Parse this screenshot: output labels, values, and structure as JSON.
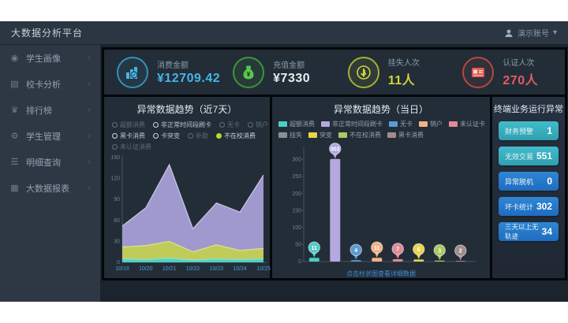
{
  "header": {
    "title": "大数据分析平台",
    "user": "演示账号",
    "caret": "▾"
  },
  "sidebar": {
    "chevron": "›",
    "items": [
      {
        "label": "学生画像",
        "icon": "person-icon",
        "glyph": "◉"
      },
      {
        "label": "校卡分析",
        "icon": "card-icon",
        "glyph": "▤"
      },
      {
        "label": "排行榜",
        "icon": "trophy-icon",
        "glyph": "♛"
      },
      {
        "label": "学生管理",
        "icon": "gear-icon",
        "glyph": "⚙"
      },
      {
        "label": "明细查询",
        "icon": "list-search-icon",
        "glyph": "☰"
      },
      {
        "label": "大数据报表",
        "icon": "report-icon",
        "glyph": "▦"
      }
    ]
  },
  "kpis": [
    {
      "label": "消费金额",
      "value": "¥12709.42",
      "color": "#45b6e6",
      "value_color": "#45b6e6",
      "icon": "bar-chart-icon"
    },
    {
      "label": "充值金额",
      "value": "¥7330",
      "color": "#57c84d",
      "value_color": "#e9eef3",
      "icon": "money-bag-icon"
    },
    {
      "label": "挂失人次",
      "value": "11人",
      "color": "#cdd53e",
      "value_color": "#cdd53e",
      "icon": "hand-click-icon"
    },
    {
      "label": "认证人次",
      "value": "270人",
      "color": "#e2574c",
      "value_color": "#e25b63",
      "icon": "id-card-icon"
    }
  ],
  "panels": {
    "trend7_title": "异常数据趋势（近7天）",
    "today_title": "异常数据趋势（当日）",
    "terminal_title": "终端业务运行异常",
    "today_link": "点击柱状图查看详细数据"
  },
  "legend7": [
    {
      "label": "超额消费",
      "state": "dim"
    },
    {
      "label": "非正常时间段刷卡",
      "state": "on"
    },
    {
      "label": "无卡",
      "state": "dim"
    },
    {
      "label": "销户",
      "state": "dim"
    },
    {
      "label": "黑卡消费",
      "state": "on"
    },
    {
      "label": "卡突变",
      "state": "on"
    },
    {
      "label": "补助",
      "state": "dim"
    },
    {
      "label": "不在校消费",
      "state": "selected"
    },
    {
      "label": "未认证消费",
      "state": "dim"
    }
  ],
  "legend_today": [
    {
      "label": "超额消费",
      "color": "#4ecdc4"
    },
    {
      "label": "非正常时间段刷卡",
      "color": "#b3a8e0"
    },
    {
      "label": "无卡",
      "color": "#5b9bd5"
    },
    {
      "label": "销户",
      "color": "#f5b183"
    },
    {
      "label": "未认证卡",
      "color": "#e08a97"
    },
    {
      "label": "挂失",
      "color": "#8a8f94"
    },
    {
      "label": "突变",
      "color": "#e8d44d"
    },
    {
      "label": "不在校消费",
      "color": "#a8c964"
    },
    {
      "label": "黑卡消费",
      "color": "#a08c8c"
    }
  ],
  "terminal_items": [
    {
      "label": "财务预警",
      "value": "1",
      "variant": "teal"
    },
    {
      "label": "无效交易",
      "value": "551",
      "variant": "teal"
    },
    {
      "label": "异常脱机",
      "value": "0",
      "variant": "blue"
    },
    {
      "label": "坏卡统计",
      "value": "302",
      "variant": "blue"
    },
    {
      "label": "三天以上无轨迹",
      "value": "34",
      "variant": "blue"
    }
  ],
  "chart_data": [
    {
      "id": "trend7",
      "type": "area",
      "title": "异常数据趋势（近7天）",
      "x": [
        "10/19",
        "10/20",
        "10/21",
        "10/22",
        "10/23",
        "10/24",
        "10/25"
      ],
      "xlabel": "",
      "ylabel": "",
      "ylim": [
        0,
        150
      ],
      "yticks": [
        0,
        30,
        60,
        90,
        120,
        150
      ],
      "grid": false,
      "legend_position": "top",
      "series": [
        {
          "name": "非正常时间段刷卡",
          "color": "#a79fd6",
          "line": "#d6d0ef",
          "values": [
            52,
            78,
            140,
            48,
            85,
            72,
            125
          ]
        },
        {
          "name": "不在校消费",
          "color": "#c3cd52",
          "line": "#e2e98a",
          "values": [
            22,
            24,
            30,
            15,
            25,
            17,
            20
          ]
        },
        {
          "name": "超额消费",
          "color": "#4ecdc4",
          "line": "#8ae6de",
          "values": [
            5,
            4,
            6,
            3,
            5,
            4,
            5
          ]
        }
      ]
    },
    {
      "id": "today",
      "type": "bar",
      "title": "异常数据趋势（当日）",
      "categories": [
        "超额消费",
        "非正常时间段刷卡",
        "无卡",
        "销户",
        "未认证卡",
        "突变",
        "不在校消费",
        "黑卡消费"
      ],
      "values": [
        11,
        302,
        4,
        11,
        7,
        6,
        3,
        2
      ],
      "colors": [
        "#4ecdc4",
        "#b3a8e0",
        "#5b9bd5",
        "#f5b183",
        "#e08a97",
        "#e8d44d",
        "#a8c964",
        "#a08c8c"
      ],
      "ylim": [
        0,
        300
      ],
      "yticks": [
        0,
        50,
        100,
        150,
        200,
        250,
        300
      ],
      "grid": false,
      "legend_position": "top"
    }
  ]
}
